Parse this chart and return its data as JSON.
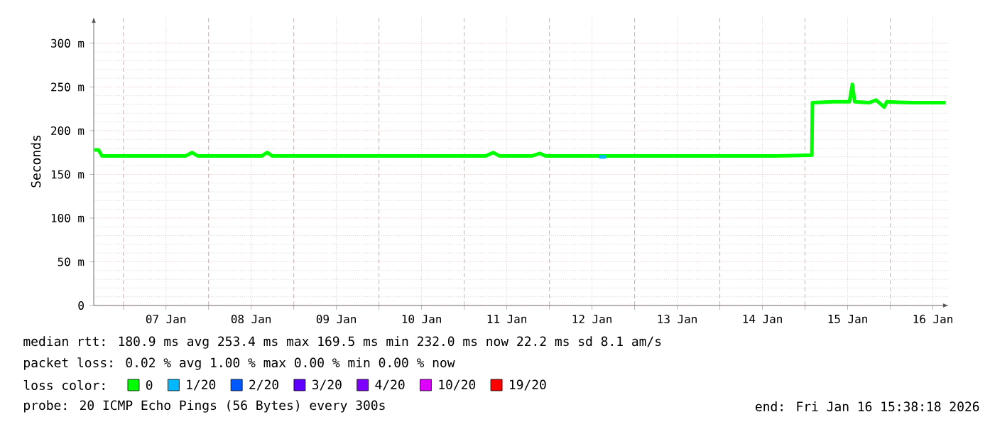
{
  "chart_data": {
    "type": "line",
    "ylabel": "Seconds",
    "legend_title": "loss color:",
    "legend": "bottom",
    "grid": true,
    "xlim": [
      "2026-01-06T15:40",
      "2026-01-16T16:30"
    ],
    "ylim": [
      0,
      330
    ],
    "xticks": [
      {
        "value": "2026-01-07T00:00",
        "label": null
      },
      {
        "value": "2026-01-07T12:00",
        "label": "07 Jan"
      },
      {
        "value": "2026-01-08T00:00",
        "label": null
      },
      {
        "value": "2026-01-08T12:00",
        "label": "08 Jan"
      },
      {
        "value": "2026-01-09T00:00",
        "label": null
      },
      {
        "value": "2026-01-09T12:00",
        "label": "09 Jan"
      },
      {
        "value": "2026-01-10T00:00",
        "label": null
      },
      {
        "value": "2026-01-10T12:00",
        "label": "10 Jan"
      },
      {
        "value": "2026-01-11T00:00",
        "label": null
      },
      {
        "value": "2026-01-11T12:00",
        "label": "11 Jan"
      },
      {
        "value": "2026-01-12T00:00",
        "label": null
      },
      {
        "value": "2026-01-12T12:00",
        "label": "12 Jan"
      },
      {
        "value": "2026-01-13T00:00",
        "label": null
      },
      {
        "value": "2026-01-13T12:00",
        "label": "13 Jan"
      },
      {
        "value": "2026-01-14T00:00",
        "label": null
      },
      {
        "value": "2026-01-14T12:00",
        "label": "14 Jan"
      },
      {
        "value": "2026-01-15T00:00",
        "label": null
      },
      {
        "value": "2026-01-15T12:00",
        "label": "15 Jan"
      },
      {
        "value": "2026-01-16T00:00",
        "label": null
      },
      {
        "value": "2026-01-16T12:00",
        "label": "16 Jan"
      }
    ],
    "yticks": [
      0,
      {
        "value": 50,
        "label": "50 m"
      },
      {
        "value": 100,
        "label": "100 m"
      },
      {
        "value": 150,
        "label": "150 m"
      },
      {
        "value": 200,
        "label": "200 m"
      },
      {
        "value": 250,
        "label": "250 m"
      },
      {
        "value": 300,
        "label": "300 m"
      }
    ],
    "x": [
      "2026-01-06T15:45",
      "2026-01-06T17:00",
      "2026-01-06T18:00",
      "2026-01-07T06:00",
      "2026-01-07T17:30",
      "2026-01-07T19:20",
      "2026-01-07T21:00",
      "2026-01-08T12:00",
      "2026-01-08T15:00",
      "2026-01-08T16:30",
      "2026-01-08T18:00",
      "2026-01-09T12:00",
      "2026-01-10T06:00",
      "2026-01-10T19:00",
      "2026-01-10T20:00",
      "2026-01-11T06:00",
      "2026-01-11T08:10",
      "2026-01-11T10:00",
      "2026-01-11T19:00",
      "2026-01-11T21:20",
      "2026-01-11T23:00",
      "2026-01-12T12:00",
      "2026-01-13T12:00",
      "2026-01-14T12:00",
      "2026-01-14T16:00",
      "2026-01-15T01:00",
      "2026-01-15T01:55",
      "2026-01-15T02:05",
      "2026-01-15T08:00",
      "2026-01-15T12:30",
      "2026-01-15T13:20",
      "2026-01-15T14:00",
      "2026-01-15T18:00",
      "2026-01-15T20:00",
      "2026-01-15T22:20",
      "2026-01-15T23:00",
      "2026-01-16T06:00",
      "2026-01-16T12:00",
      "2026-01-16T15:38"
    ],
    "series": [
      {
        "name": "0",
        "color": "#00ff00",
        "values": [
          178,
          178,
          171,
          171,
          171,
          175,
          171,
          171,
          171,
          175,
          171,
          171,
          171,
          171,
          171,
          171,
          175,
          171,
          171,
          174,
          171,
          171,
          171,
          171,
          171,
          172,
          172,
          232,
          233,
          233,
          253,
          233,
          232,
          235,
          227,
          233,
          232,
          232,
          232
        ]
      },
      {
        "name": "1/20",
        "color": "#00b8ff",
        "x": [
          "2026-01-12T14:00",
          "2026-01-12T16:00"
        ],
        "values": [
          170,
          170
        ]
      },
      {
        "name": "2/20",
        "color": "#0059ff",
        "values": [
          null,
          null,
          null,
          null,
          null,
          null,
          null,
          null,
          null,
          null,
          null,
          null,
          null,
          null,
          null,
          null,
          null,
          null,
          null,
          null,
          null,
          null,
          null,
          null,
          null,
          null,
          null,
          null,
          null,
          null,
          null,
          null,
          null,
          null,
          null,
          null,
          null,
          null,
          null
        ]
      },
      {
        "name": "3/20",
        "color": "#5e00ff",
        "values": [
          null,
          null,
          null,
          null,
          null,
          null,
          null,
          null,
          null,
          null,
          null,
          null,
          null,
          null,
          null,
          null,
          null,
          null,
          null,
          null,
          null,
          null,
          null,
          null,
          null,
          null,
          null,
          null,
          null,
          null,
          null,
          null,
          null,
          null,
          null,
          null,
          null,
          null,
          null
        ]
      },
      {
        "name": "4/20",
        "color": "#7e00ff",
        "values": [
          null,
          null,
          null,
          null,
          null,
          null,
          null,
          null,
          null,
          null,
          null,
          null,
          null,
          null,
          null,
          null,
          null,
          null,
          null,
          null,
          null,
          null,
          null,
          null,
          null,
          null,
          null,
          null,
          null,
          null,
          null,
          null,
          null,
          null,
          null,
          null,
          null,
          null,
          null
        ]
      },
      {
        "name": "10/20",
        "color": "#dd00ff",
        "values": [
          null,
          null,
          null,
          null,
          null,
          null,
          null,
          null,
          null,
          null,
          null,
          null,
          null,
          null,
          null,
          null,
          null,
          null,
          null,
          null,
          null,
          null,
          null,
          null,
          null,
          null,
          null,
          null,
          null,
          null,
          null,
          null,
          null,
          null,
          null,
          null,
          null,
          null,
          null
        ]
      },
      {
        "name": "19/20",
        "color": "#ff0000",
        "values": [
          null,
          null,
          null,
          null,
          null,
          null,
          null,
          null,
          null,
          null,
          null,
          null,
          null,
          null,
          null,
          null,
          null,
          null,
          null,
          null,
          null,
          null,
          null,
          null,
          null,
          null,
          null,
          null,
          null,
          null,
          null,
          null,
          null,
          null,
          null,
          null,
          null,
          null,
          null
        ]
      }
    ],
    "annotations": [
      "median rtt: 180.9 ms avg 253.4 ms max 169.5 ms min 232.0 ms now 22.2 ms sd 8.1 am/s",
      "packet loss: 0.02 % avg 1.00 % max 0.00 % min 0.00 % now",
      "probe: 20 ICMP Echo Pings (56 Bytes) every 300s",
      "end: Fri Jan 16 15:38:18 2026"
    ]
  }
}
